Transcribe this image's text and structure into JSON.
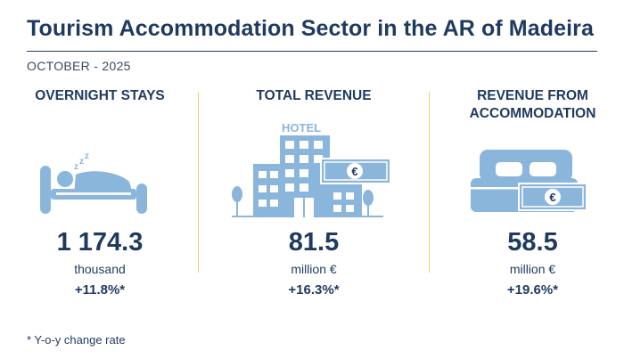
{
  "title": "Tourism Accommodation Sector in the AR of Madeira",
  "period": "OCTOBER - 2025",
  "indicators": [
    {
      "heading": "OVERNIGHT STAYS",
      "value": "1 174.3",
      "unit": "thousand",
      "change": "+11.8%*",
      "icon": "sleeping-person-bed-icon"
    },
    {
      "heading": "TOTAL REVENUE",
      "value": "81.5",
      "unit": "million €",
      "change": "+16.3%*",
      "icon": "hotel-building-icon",
      "icon_label": "HOTEL",
      "currency_symbol": "€"
    },
    {
      "heading": "REVENUE FROM ACCOMMODATION",
      "value": "58.5",
      "unit": "million €",
      "change": "+19.6%*",
      "icon": "double-bed-banknote-icon",
      "currency_symbol": "€"
    }
  ],
  "footnote": "* Y-o-y change rate",
  "colors": {
    "text": "#1f3a5f",
    "icon": "#8bb6dc",
    "divider": "#f2cc78"
  }
}
